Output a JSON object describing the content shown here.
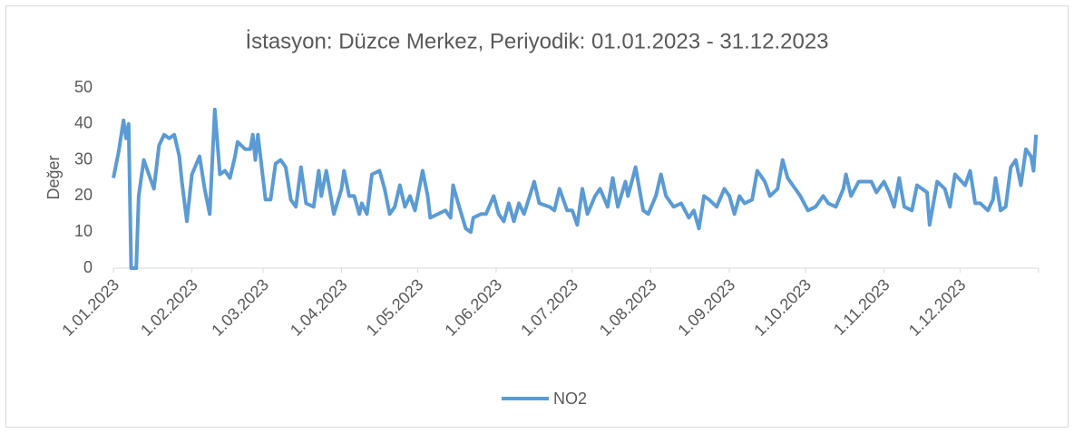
{
  "chart_data": {
    "type": "line",
    "title": "İstasyon: Düzce Merkez,  Periyodik: 01.01.2023 - 31.12.2023",
    "y_label": "Değer",
    "x": [
      0,
      2,
      4,
      5,
      6,
      7,
      9,
      10,
      12,
      14,
      16,
      18,
      20,
      22,
      24,
      26,
      27,
      29,
      31,
      34,
      36,
      38,
      40,
      42,
      44,
      46,
      48,
      49,
      52,
      54,
      55,
      56,
      57,
      60,
      62,
      64,
      66,
      68,
      70,
      72,
      74,
      76,
      79,
      81,
      82,
      84,
      87,
      90,
      91,
      93,
      95,
      97,
      98,
      100,
      102,
      105,
      107,
      109,
      111,
      113,
      115,
      117,
      119,
      122,
      124,
      125,
      128,
      131,
      133,
      134,
      136,
      139,
      141,
      142,
      145,
      147,
      150,
      152,
      154,
      156,
      158,
      160,
      162,
      166,
      168,
      172,
      174,
      176,
      179,
      181,
      183,
      185,
      187,
      190,
      192,
      195,
      197,
      199,
      202,
      203,
      206,
      209,
      211,
      214,
      216,
      218,
      221,
      224,
      227,
      229,
      231,
      233,
      235,
      238,
      241,
      243,
      245,
      247,
      249,
      252,
      254,
      257,
      259,
      262,
      264,
      266,
      269,
      271,
      274,
      277,
      280,
      282,
      285,
      288,
      289,
      291,
      294,
      296,
      299,
      301,
      304,
      306,
      308,
      310,
      312,
      315,
      317,
      321,
      322,
      325,
      328,
      330,
      332,
      336,
      338,
      340,
      342,
      345,
      347,
      348,
      350,
      352,
      354,
      356,
      358,
      360,
      362,
      363,
      364
    ],
    "series": [
      {
        "name": "NO2",
        "color": "#5b9bd5",
        "values": [
          25,
          32,
          41,
          36,
          40,
          0,
          0,
          20,
          30,
          26,
          22,
          34,
          37,
          36,
          37,
          31,
          24,
          13,
          26,
          31,
          22,
          15,
          44,
          26,
          27,
          25,
          31,
          35,
          33,
          33,
          37,
          30,
          37,
          19,
          19,
          29,
          30,
          28,
          19,
          17,
          28,
          18,
          17,
          27,
          20,
          27,
          15,
          22,
          27,
          20,
          20,
          15,
          18,
          15,
          26,
          27,
          22,
          15,
          17,
          23,
          17,
          20,
          16,
          27,
          20,
          14,
          15,
          16,
          14,
          23,
          18,
          11,
          10,
          14,
          15,
          15,
          20,
          15,
          13,
          18,
          13,
          18,
          15,
          24,
          18,
          17,
          16,
          22,
          16,
          16,
          12,
          22,
          15,
          20,
          22,
          17,
          25,
          17,
          24,
          20,
          28,
          16,
          15,
          20,
          26,
          20,
          17,
          18,
          14,
          16,
          11,
          20,
          19,
          17,
          22,
          20,
          15,
          20,
          18,
          19,
          27,
          24,
          20,
          22,
          30,
          25,
          22,
          20,
          16,
          17,
          20,
          18,
          17,
          22,
          26,
          20,
          24,
          24,
          24,
          21,
          24,
          21,
          17,
          25,
          17,
          16,
          23,
          21,
          12,
          24,
          22,
          17,
          26,
          23,
          27,
          18,
          18,
          16,
          19,
          25,
          16,
          17,
          28,
          30,
          23,
          33,
          31,
          27,
          37
        ]
      }
    ],
    "xlim": [
      0,
      365
    ],
    "xticks": [
      {
        "value": 0,
        "label": "1.01.2023"
      },
      {
        "value": 31,
        "label": "1.02.2023"
      },
      {
        "value": 59,
        "label": "1.03.2023"
      },
      {
        "value": 90,
        "label": "1.04.2023"
      },
      {
        "value": 120,
        "label": "1.05.2023"
      },
      {
        "value": 151,
        "label": "1.06.2023"
      },
      {
        "value": 181,
        "label": "1.07.2023"
      },
      {
        "value": 212,
        "label": "1.08.2023"
      },
      {
        "value": 243,
        "label": "1.09.2023"
      },
      {
        "value": 273,
        "label": "1.10.2023"
      },
      {
        "value": 304,
        "label": "1.11.2023"
      },
      {
        "value": 334,
        "label": "1.12.2023"
      }
    ],
    "ylim": [
      0,
      50
    ],
    "yticks": [
      0,
      10,
      20,
      30,
      40,
      50
    ],
    "grid": false,
    "legend": "bottom"
  }
}
